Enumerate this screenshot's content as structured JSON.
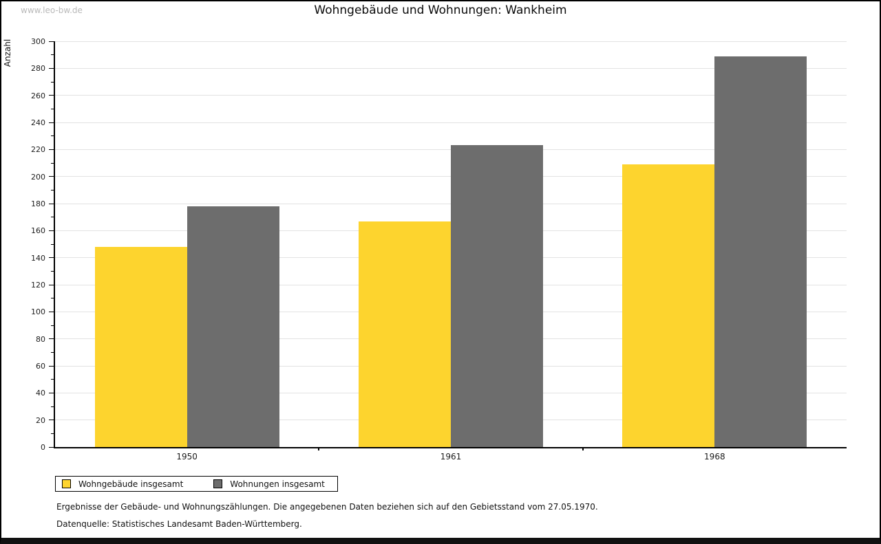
{
  "watermark": "www.leo-bw.de",
  "title": "Wohngebäude und Wohnungen: Wankheim",
  "chart_data": {
    "type": "bar",
    "title": "Wohngebäude und Wohnungen: Wankheim",
    "categories": [
      "1950",
      "1961",
      "1968"
    ],
    "series": [
      {
        "name": "Wohngebäude insgesamt",
        "color": "#fdd42e",
        "values": [
          148,
          167,
          209
        ]
      },
      {
        "name": "Wohnungen insgesamt",
        "color": "#6d6d6d",
        "values": [
          178,
          223,
          289
        ]
      }
    ],
    "xlabel": "",
    "ylabel": "Anzahl",
    "ylim": [
      0,
      300
    ],
    "ytick_step": 20,
    "yminor_step": 10,
    "grid": true,
    "legend_position": "bottom-left"
  },
  "footer": {
    "line1": "Ergebnisse der Gebäude- und Wohnungszählungen. Die angegebenen Daten beziehen sich auf den Gebietsstand vom 27.05.1970.",
    "line2": "Datenquelle: Statistisches Landesamt Baden-Württemberg."
  }
}
